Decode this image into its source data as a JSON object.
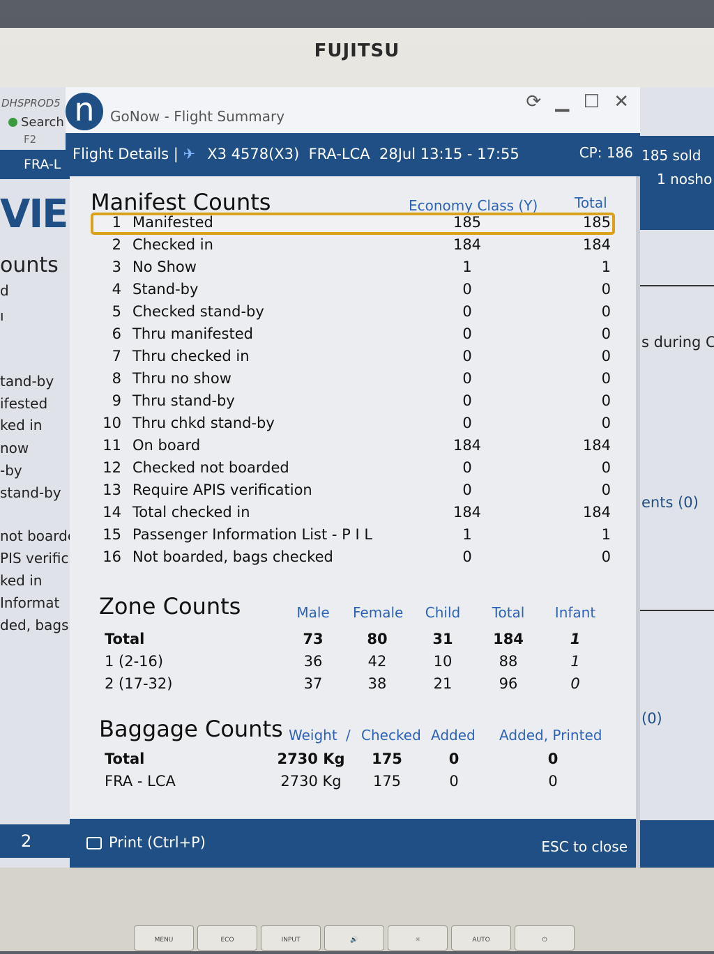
{
  "monitor": {
    "brand": "FUJITSU",
    "buttons": [
      "MENU",
      "ECO",
      "INPUT",
      "🔊",
      "☼",
      "AUTO",
      "⏻"
    ]
  },
  "background_left": {
    "env": "DHSPROD5",
    "search": "Search",
    "f2": "F2",
    "route": "FRA-L",
    "big": "VIE",
    "sub": "ounts",
    "items": [
      "d",
      "ı",
      "tand-by",
      "ifested",
      "ked in",
      "now",
      "-by",
      " stand-by",
      "not boarde",
      "PIS verific",
      "ked in",
      "Informat",
      "ded, bags"
    ],
    "tab": "2"
  },
  "background_right": {
    "sold": "185 sold",
    "noshow": "1 nosho",
    "during": "s during Cl",
    "events": "ents (0)",
    "zero": "(0)"
  },
  "dialog": {
    "app_title": "GoNow - Flight Summary",
    "win_buttons": "⟳ ▁ ☐ ✕",
    "header": {
      "label": "Flight Details |",
      "flight": "X3 4578(X3)",
      "route": "FRA-LCA",
      "date_time": "28Jul 13:15 - 17:55",
      "cp": "CP: 186"
    },
    "manifest": {
      "title": "Manifest Counts",
      "col_class": "Economy Class (Y)",
      "col_total": "Total",
      "rows": [
        {
          "num": "1",
          "label": "Manifested",
          "y": "185",
          "total": "185"
        },
        {
          "num": "2",
          "label": "Checked in",
          "y": "184",
          "total": "184"
        },
        {
          "num": "3",
          "label": "No Show",
          "y": "1",
          "total": "1"
        },
        {
          "num": "4",
          "label": "Stand-by",
          "y": "0",
          "total": "0"
        },
        {
          "num": "5",
          "label": "Checked stand-by",
          "y": "0",
          "total": "0"
        },
        {
          "num": "6",
          "label": "Thru manifested",
          "y": "0",
          "total": "0"
        },
        {
          "num": "7",
          "label": "Thru checked in",
          "y": "0",
          "total": "0"
        },
        {
          "num": "8",
          "label": "Thru no show",
          "y": "0",
          "total": "0"
        },
        {
          "num": "9",
          "label": "Thru stand-by",
          "y": "0",
          "total": "0"
        },
        {
          "num": "10",
          "label": "Thru chkd stand-by",
          "y": "0",
          "total": "0"
        },
        {
          "num": "11",
          "label": "On board",
          "y": "184",
          "total": "184"
        },
        {
          "num": "12",
          "label": "Checked not boarded",
          "y": "0",
          "total": "0"
        },
        {
          "num": "13",
          "label": "Require APIS verification",
          "y": "0",
          "total": "0"
        },
        {
          "num": "14",
          "label": "Total checked in",
          "y": "184",
          "total": "184"
        },
        {
          "num": "15",
          "label": "Passenger Information List - P I L",
          "y": "1",
          "total": "1"
        },
        {
          "num": "16",
          "label": "Not boarded, bags checked",
          "y": "0",
          "total": "0"
        }
      ]
    },
    "zone": {
      "title": "Zone Counts",
      "cols": [
        "Male",
        "Female",
        "Child",
        "Total",
        "Infant"
      ],
      "rows": [
        {
          "label": "Total",
          "male": "73",
          "female": "80",
          "child": "31",
          "total": "184",
          "infant": "1"
        },
        {
          "label": "1 (2-16)",
          "male": "36",
          "female": "42",
          "child": "10",
          "total": "88",
          "infant": "1"
        },
        {
          "label": "2 (17-32)",
          "male": "37",
          "female": "38",
          "child": "21",
          "total": "96",
          "infant": "0"
        }
      ]
    },
    "baggage": {
      "title": "Baggage Counts",
      "cols": [
        "Weight",
        "/",
        "Checked",
        "Added",
        "Added, Printed"
      ],
      "rows": [
        {
          "label": "Total",
          "weight": "2730 Kg",
          "checked": "175",
          "added": "0",
          "printed": "0"
        },
        {
          "label": "FRA - LCA",
          "weight": "2730 Kg",
          "checked": "175",
          "added": "0",
          "printed": "0"
        }
      ]
    },
    "footer": {
      "print": "Print (Ctrl+P)",
      "esc": "ESC to close"
    }
  }
}
